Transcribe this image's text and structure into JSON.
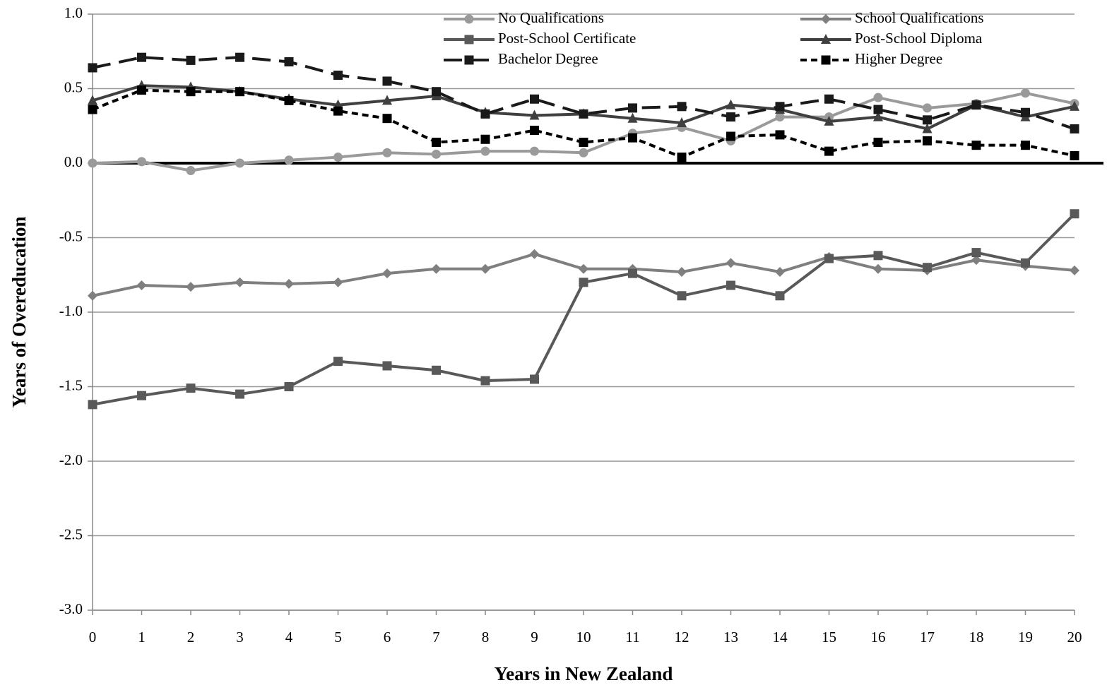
{
  "chart_data": {
    "type": "line",
    "x_label": "Years in New Zealand",
    "y_label": "Years of Overeducation",
    "x": [
      0,
      1,
      2,
      3,
      4,
      5,
      6,
      7,
      8,
      9,
      10,
      11,
      12,
      13,
      14,
      15,
      16,
      17,
      18,
      19,
      20
    ],
    "xlim": [
      0,
      20
    ],
    "xticks": [
      0,
      1,
      2,
      3,
      4,
      5,
      6,
      7,
      8,
      9,
      10,
      11,
      12,
      13,
      14,
      15,
      16,
      17,
      18,
      19,
      20
    ],
    "ylim": [
      -3,
      1
    ],
    "yticks": [
      {
        "value": 1,
        "label": "1.0"
      },
      0.5,
      {
        "value": 0,
        "label": "0.0"
      },
      -0.5,
      {
        "value": -1,
        "label": "-1.0"
      },
      -1.5,
      {
        "value": -2,
        "label": "-2.0"
      },
      -2.5,
      {
        "value": -3,
        "label": "-3.0"
      }
    ],
    "grid": true,
    "legend": "top-right",
    "series": [
      {
        "name": "No Qualifications",
        "color": "#9a9a9a",
        "marker": "circle",
        "dash": "solid",
        "values": [
          0.0,
          0.01,
          -0.05,
          0.0,
          0.02,
          0.04,
          0.07,
          0.06,
          0.08,
          0.08,
          0.07,
          0.2,
          0.24,
          0.15,
          0.31,
          0.31,
          0.44,
          0.37,
          0.4,
          0.47,
          0.4
        ]
      },
      {
        "name": "School Qualifications",
        "color": "#7f7f7f",
        "marker": "diamond",
        "dash": "solid",
        "values": [
          -0.89,
          -0.82,
          -0.83,
          -0.8,
          -0.81,
          -0.8,
          -0.74,
          -0.71,
          -0.71,
          -0.61,
          -0.71,
          -0.71,
          -0.73,
          -0.67,
          -0.73,
          -0.63,
          -0.71,
          -0.72,
          -0.65,
          -0.69,
          -0.72
        ]
      },
      {
        "name": "Post-School Certificate",
        "color": "#595959",
        "marker": "square",
        "dash": "solid",
        "values": [
          -1.62,
          -1.56,
          -1.51,
          -1.55,
          -1.5,
          -1.33,
          -1.36,
          -1.39,
          -1.46,
          -1.45,
          -0.8,
          -0.74,
          -0.89,
          -0.82,
          -0.89,
          -0.64,
          -0.62,
          -0.7,
          -0.6,
          -0.67,
          -0.34
        ]
      },
      {
        "name": "Post-School Diploma",
        "color": "#404040",
        "marker": "triangle",
        "dash": "solid",
        "values": [
          0.42,
          0.52,
          0.51,
          0.48,
          0.43,
          0.39,
          0.42,
          0.45,
          0.34,
          0.32,
          0.33,
          0.3,
          0.27,
          0.39,
          0.36,
          0.28,
          0.31,
          0.23,
          0.39,
          0.31,
          0.38
        ]
      },
      {
        "name": "Bachelor Degree",
        "color": "#1a1a1a",
        "marker": "square",
        "dash": "long",
        "values": [
          0.64,
          0.71,
          0.69,
          0.71,
          0.68,
          0.59,
          0.55,
          0.48,
          0.33,
          0.43,
          0.33,
          0.37,
          0.38,
          0.31,
          0.38,
          0.43,
          0.36,
          0.29,
          0.39,
          0.34,
          0.23
        ]
      },
      {
        "name": "Higher Degree",
        "color": "#000000",
        "marker": "square",
        "dash": "short",
        "values": [
          0.36,
          0.49,
          0.48,
          0.48,
          0.42,
          0.35,
          0.3,
          0.14,
          0.16,
          0.22,
          0.14,
          0.17,
          0.04,
          0.18,
          0.19,
          0.08,
          0.14,
          0.15,
          0.12,
          0.12,
          0.05
        ]
      }
    ]
  }
}
